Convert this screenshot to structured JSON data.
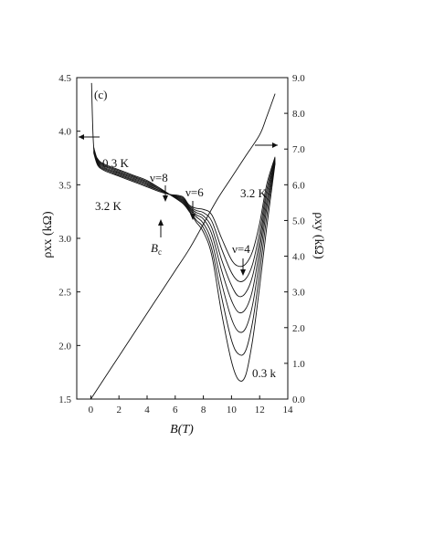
{
  "chart_data": {
    "type": "line",
    "panel_label": "(c)",
    "xlabel": "B(T)",
    "ylabel_left": "ρxx (kΩ)",
    "ylabel_right": "ρxy (kΩ)",
    "xlim": [
      -1,
      14
    ],
    "ylim_left": [
      1.5,
      4.5
    ],
    "ylim_right": [
      0,
      9
    ],
    "x_ticks": [
      "0",
      "2",
      "4",
      "6",
      "8",
      "10",
      "12",
      "14"
    ],
    "y_ticks_left": [
      "1.5",
      "2.0",
      "2.5",
      "3.0",
      "3.5",
      "4.0",
      "4.5"
    ],
    "y_ticks_right": [
      "0.0",
      "1.0",
      "2.0",
      "3.0",
      "4.0",
      "5.0",
      "6.0",
      "7.0",
      "8.0",
      "9.0"
    ],
    "annotations": {
      "t_low_left": "0.3 K",
      "t_high_left": "3.2 K",
      "nu8": "ν=8",
      "nu6": "ν=6",
      "nu4": "ν=4",
      "t_high_right": "3.2 K",
      "t_low_right": "0.3 k",
      "bc_main": "B",
      "bc_sub": "c"
    },
    "series_rho_xx": [
      {
        "x": [
          0.05,
          0.2,
          0.5,
          1,
          2,
          3,
          4,
          5,
          5.6,
          6.5,
          7,
          7.5,
          8,
          8.6,
          9.3,
          10,
          10.5,
          11,
          11.5,
          12,
          12.5,
          13.1
        ],
        "y": [
          4.45,
          3.86,
          3.74,
          3.69,
          3.64,
          3.59,
          3.54,
          3.46,
          3.41,
          3.33,
          3.25,
          3.15,
          3.06,
          2.84,
          2.3,
          1.85,
          1.68,
          1.72,
          2.05,
          2.55,
          3.1,
          3.7
        ]
      },
      {
        "x": [
          0.2,
          0.5,
          1,
          2,
          3,
          4,
          5,
          5.6,
          6.5,
          7,
          7.5,
          8,
          8.6,
          9.3,
          10,
          10.5,
          11,
          11.5,
          12,
          12.5,
          13.1
        ],
        "y": [
          3.85,
          3.73,
          3.68,
          3.63,
          3.58,
          3.53,
          3.46,
          3.41,
          3.34,
          3.26,
          3.17,
          3.1,
          2.9,
          2.45,
          2.05,
          1.92,
          1.95,
          2.22,
          2.68,
          3.2,
          3.71
        ]
      },
      {
        "x": [
          0.2,
          0.5,
          1,
          2,
          3,
          4,
          5,
          5.6,
          6.5,
          7,
          7.5,
          8,
          8.6,
          9.3,
          10,
          10.5,
          11,
          11.5,
          12,
          12.5,
          13.1
        ],
        "y": [
          3.84,
          3.72,
          3.67,
          3.62,
          3.57,
          3.52,
          3.45,
          3.41,
          3.35,
          3.27,
          3.2,
          3.14,
          2.97,
          2.58,
          2.25,
          2.13,
          2.16,
          2.38,
          2.8,
          3.28,
          3.72
        ]
      },
      {
        "x": [
          0.2,
          0.5,
          1,
          2,
          3,
          4,
          5,
          5.6,
          6.5,
          7,
          7.5,
          8,
          8.6,
          9.3,
          10,
          10.5,
          11,
          11.5,
          12,
          12.5,
          13.1
        ],
        "y": [
          3.83,
          3.71,
          3.66,
          3.61,
          3.56,
          3.51,
          3.45,
          3.41,
          3.36,
          3.28,
          3.22,
          3.18,
          3.04,
          2.7,
          2.42,
          2.31,
          2.34,
          2.52,
          2.9,
          3.34,
          3.73
        ]
      },
      {
        "x": [
          0.2,
          0.5,
          1,
          2,
          3,
          4,
          5,
          5.6,
          6.5,
          7,
          7.5,
          8,
          8.6,
          9.3,
          10,
          10.5,
          11,
          11.5,
          12,
          12.5,
          13.1
        ],
        "y": [
          3.82,
          3.7,
          3.65,
          3.6,
          3.55,
          3.5,
          3.44,
          3.41,
          3.37,
          3.29,
          3.24,
          3.21,
          3.1,
          2.8,
          2.56,
          2.46,
          2.49,
          2.65,
          2.98,
          3.4,
          3.74
        ]
      },
      {
        "x": [
          0.2,
          0.5,
          1,
          2,
          3,
          4,
          5,
          5.6,
          6.5,
          7,
          7.5,
          8,
          8.6,
          9.3,
          10,
          10.5,
          11,
          11.5,
          12,
          12.5,
          13.1
        ],
        "y": [
          3.81,
          3.69,
          3.64,
          3.59,
          3.54,
          3.49,
          3.44,
          3.41,
          3.38,
          3.3,
          3.26,
          3.24,
          3.16,
          2.9,
          2.68,
          2.6,
          2.62,
          2.76,
          3.06,
          3.45,
          3.75
        ]
      },
      {
        "x": [
          0.2,
          0.5,
          1,
          2,
          3,
          4,
          5,
          5.6,
          6.5,
          7,
          7.5,
          8,
          8.6,
          9.3,
          10,
          10.5,
          11,
          11.5,
          12,
          12.5,
          13.1
        ],
        "y": [
          3.8,
          3.68,
          3.63,
          3.58,
          3.53,
          3.48,
          3.43,
          3.41,
          3.39,
          3.31,
          3.28,
          3.27,
          3.22,
          3.0,
          2.8,
          2.74,
          2.76,
          2.88,
          3.14,
          3.5,
          3.76
        ]
      }
    ],
    "series_rho_xy": {
      "x": [
        0,
        1,
        2,
        3,
        4,
        5,
        6,
        7,
        8,
        9,
        10,
        11,
        12,
        12.5,
        13.1
      ],
      "y": [
        0.0,
        0.6,
        1.2,
        1.8,
        2.4,
        3.0,
        3.6,
        4.2,
        4.9,
        5.6,
        6.2,
        6.8,
        7.4,
        7.9,
        8.55
      ]
    }
  }
}
